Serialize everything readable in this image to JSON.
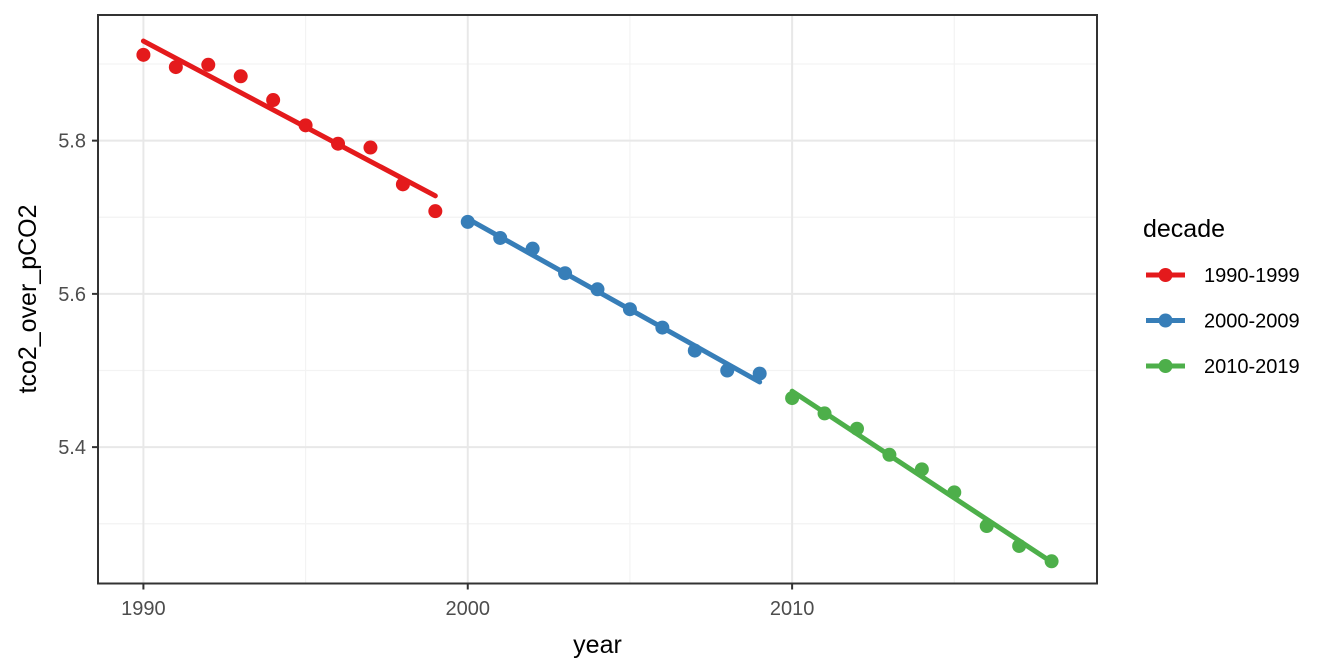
{
  "chart_data": {
    "type": "scatter",
    "title": "",
    "xlabel": "year",
    "ylabel": "tco2_over_pCO2",
    "legend": {
      "title": "decade",
      "position": "right",
      "entries": [
        "1990-1999",
        "2000-2009",
        "2010-2019"
      ]
    },
    "axes": {
      "xlim": [
        1988.6,
        2019.4
      ],
      "ylim": [
        5.222,
        5.964
      ],
      "x_ticks": {
        "values": [
          1990,
          2000,
          2010
        ],
        "labels": [
          "1990",
          "2000",
          "2010"
        ]
      },
      "y_ticks": {
        "values": [
          5.4,
          5.6,
          5.8
        ],
        "labels": [
          "5.4",
          "5.6",
          "5.8"
        ]
      },
      "x_minor_gridlines": [
        1995,
        2005,
        2015
      ],
      "y_minor_gridlines": [
        5.3,
        5.5,
        5.7,
        5.9
      ],
      "grid": "major+minor"
    },
    "series": [
      {
        "name": "1990-1999",
        "color": "#E41A1C",
        "x": [
          1990,
          1991,
          1992,
          1993,
          1994,
          1995,
          1996,
          1997,
          1998,
          1999
        ],
        "y": [
          5.912,
          5.896,
          5.899,
          5.884,
          5.853,
          5.82,
          5.796,
          5.791,
          5.743,
          5.708
        ],
        "trend": {
          "x": [
            1990,
            1999
          ],
          "y": [
            5.93,
            5.728
          ]
        }
      },
      {
        "name": "2000-2009",
        "color": "#377EB8",
        "x": [
          2000,
          2001,
          2002,
          2003,
          2004,
          2005,
          2006,
          2007,
          2008,
          2009
        ],
        "y": [
          5.694,
          5.673,
          5.659,
          5.627,
          5.606,
          5.58,
          5.556,
          5.526,
          5.5,
          5.496
        ],
        "trend": {
          "x": [
            2000,
            2009
          ],
          "y": [
            5.698,
            5.485
          ]
        }
      },
      {
        "name": "2010-2019",
        "color": "#4DAF4A",
        "x": [
          2010,
          2011,
          2012,
          2013,
          2014,
          2015,
          2016,
          2017,
          2018
        ],
        "y": [
          5.464,
          5.444,
          5.424,
          5.39,
          5.371,
          5.341,
          5.297,
          5.271,
          5.251
        ],
        "trend": {
          "x": [
            2010,
            2018
          ],
          "y": [
            5.473,
            5.25
          ]
        }
      }
    ]
  },
  "colors": {
    "background": "#FFFFFF",
    "panel_background": "#FFFFFF",
    "panel_border": "#333333",
    "grid_major": "#E8E8E8",
    "grid_minor": "#F3F3F3",
    "tick_mark": "#333333",
    "tick_text": "#4D4D4D",
    "title_text": "#000000"
  }
}
